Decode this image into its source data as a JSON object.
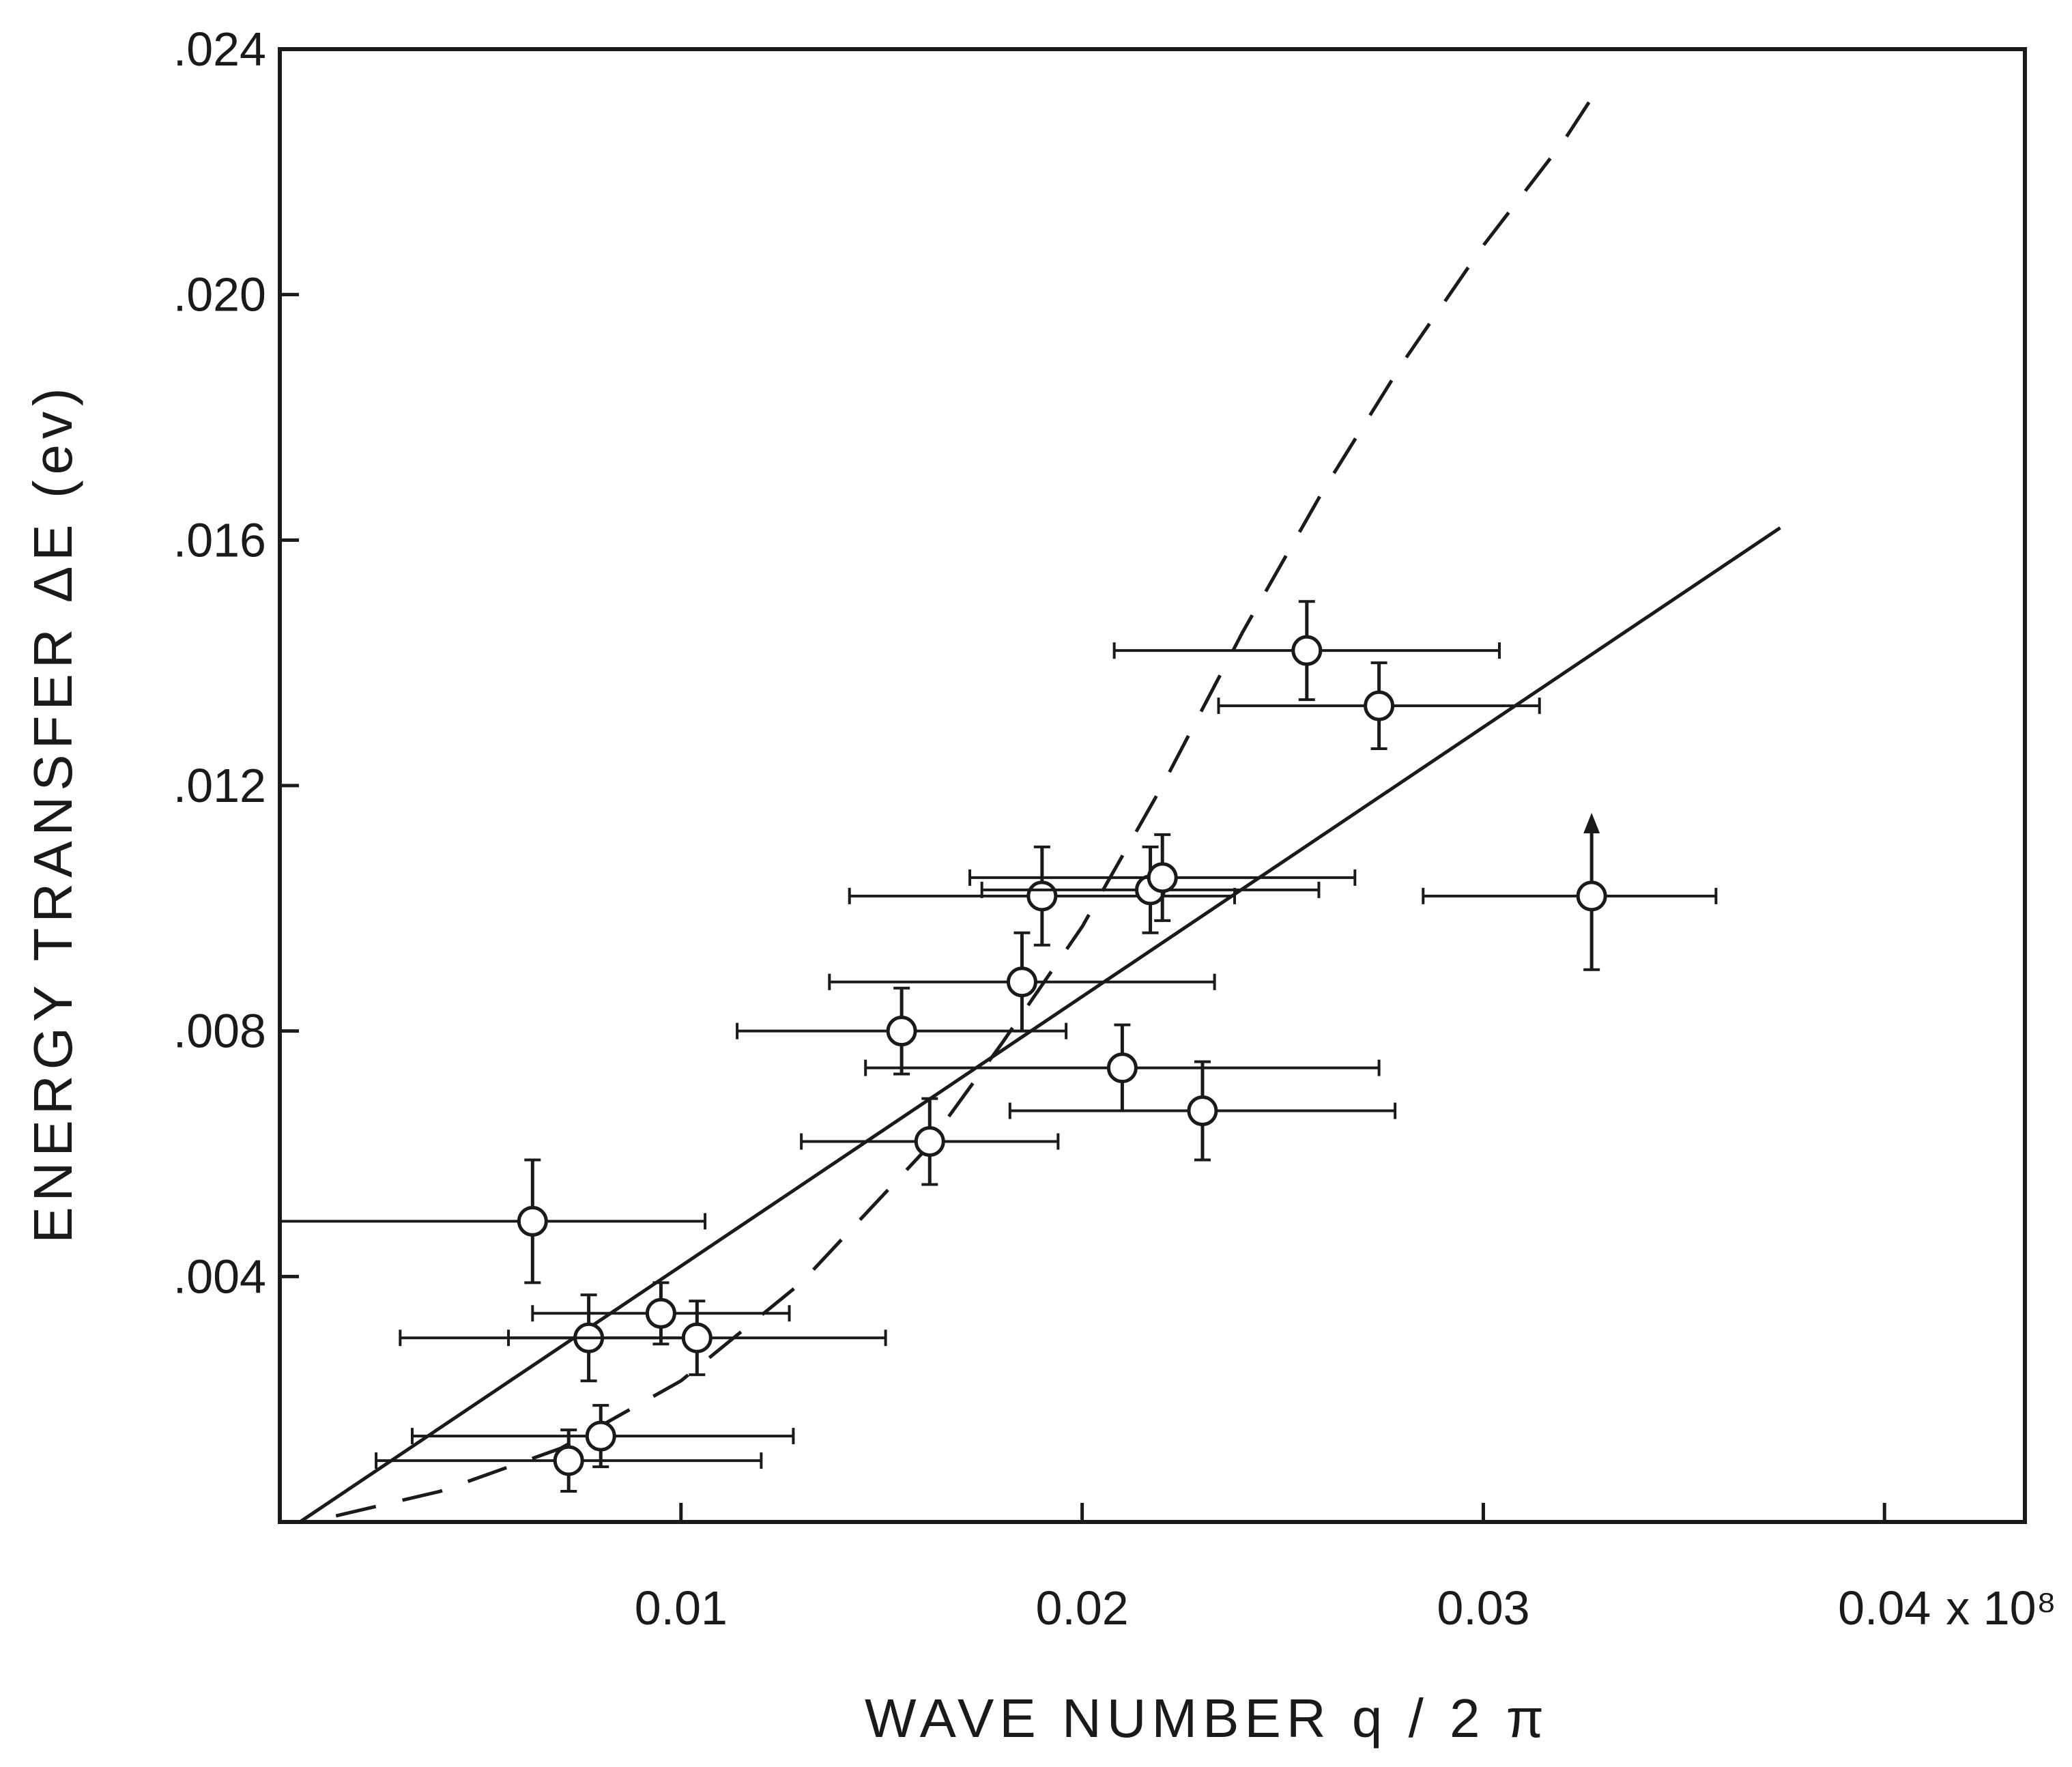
{
  "chart_data": {
    "type": "scatter",
    "title": "",
    "xlabel": "WAVE NUMBER  q / 2 π",
    "ylabel": "ENERGY TRANSFER  ΔE  (ev)",
    "x_multiplier_label": "x 10⁸",
    "xlim": [
      0,
      0.0435
    ],
    "ylim": [
      0,
      0.024
    ],
    "x_ticks": [
      {
        "value": 0.01,
        "label": "0.01"
      },
      {
        "value": 0.02,
        "label": "0.02"
      },
      {
        "value": 0.03,
        "label": "0.03"
      },
      {
        "value": 0.04,
        "label": "0.04"
      }
    ],
    "y_ticks": [
      {
        "value": 0.004,
        "label": ".004"
      },
      {
        "value": 0.008,
        "label": ".008"
      },
      {
        "value": 0.012,
        "label": ".012"
      },
      {
        "value": 0.016,
        "label": ".016"
      },
      {
        "value": 0.02,
        "label": ".020"
      },
      {
        "value": 0.024,
        "label": ".024"
      }
    ],
    "grid": false,
    "colors": {
      "ink": "#1a1a1a",
      "background": "#ffffff"
    },
    "series": [
      {
        "marker": "open-circle",
        "points": [
          {
            "x": 0.0063,
            "y": 0.0049,
            "xerr": [
              0.0063,
              0.0043
            ],
            "yerr": [
              0.001,
              0.001
            ]
          },
          {
            "x": 0.0077,
            "y": 0.003,
            "xerr": [
              0.0047,
              0.0025
            ],
            "yerr": [
              0.0007,
              0.0007
            ]
          },
          {
            "x": 0.0095,
            "y": 0.0034,
            "xerr": [
              0.0032,
              0.0032
            ],
            "yerr": [
              0.0005,
              0.0005
            ]
          },
          {
            "x": 0.0104,
            "y": 0.003,
            "xerr": [
              0.0047,
              0.0047
            ],
            "yerr": [
              0.0006,
              0.0006
            ]
          },
          {
            "x": 0.008,
            "y": 0.0014,
            "xerr": [
              0.0047,
              0.0048
            ],
            "yerr": [
              0.0005,
              0.0005
            ]
          },
          {
            "x": 0.0072,
            "y": 0.001,
            "xerr": [
              0.0048,
              0.0048
            ],
            "yerr": [
              0.0005,
              0.0005
            ]
          },
          {
            "x": 0.0155,
            "y": 0.008,
            "xerr": [
              0.0041,
              0.0041
            ],
            "yerr": [
              0.0007,
              0.0007
            ]
          },
          {
            "x": 0.0185,
            "y": 0.0088,
            "xerr": [
              0.0048,
              0.0048
            ],
            "yerr": [
              0.0008,
              0.0008
            ]
          },
          {
            "x": 0.0162,
            "y": 0.0062,
            "xerr": [
              0.0032,
              0.0032
            ],
            "yerr": [
              0.0007,
              0.0007
            ]
          },
          {
            "x": 0.019,
            "y": 0.0102,
            "xerr": [
              0.0048,
              0.0048
            ],
            "yerr": [
              0.0008,
              0.0008
            ]
          },
          {
            "x": 0.0217,
            "y": 0.0103,
            "xerr": [
              0.0042,
              0.0042
            ],
            "yerr": [
              0.0007,
              0.0007
            ]
          },
          {
            "x": 0.022,
            "y": 0.0105,
            "xerr": [
              0.0048,
              0.0048
            ],
            "yerr": [
              0.0007,
              0.0007
            ]
          },
          {
            "x": 0.021,
            "y": 0.0074,
            "xerr": [
              0.0064,
              0.0064
            ],
            "yerr": [
              0.0007,
              0.0007
            ]
          },
          {
            "x": 0.023,
            "y": 0.0067,
            "xerr": [
              0.0048,
              0.0048
            ],
            "yerr": [
              0.0008,
              0.0008
            ]
          },
          {
            "x": 0.0256,
            "y": 0.0142,
            "xerr": [
              0.0048,
              0.0048
            ],
            "yerr": [
              0.0008,
              0.0008
            ]
          },
          {
            "x": 0.0274,
            "y": 0.0133,
            "xerr": [
              0.004,
              0.004
            ],
            "yerr": [
              0.0007,
              0.0007
            ]
          },
          {
            "x": 0.0327,
            "y": 0.0102,
            "xerr": [
              0.0042,
              0.0031
            ],
            "yerr": [
              0.0012,
              0.0012
            ],
            "lower_limit_arrow": true
          }
        ]
      },
      {
        "line": "solid",
        "points": [
          [
            0.0005,
            0.0
          ],
          [
            0.0374,
            0.0162
          ]
        ]
      },
      {
        "line": "dashed",
        "points": [
          [
            0.0014,
            0.0001
          ],
          [
            0.004,
            0.0005
          ],
          [
            0.007,
            0.0012
          ],
          [
            0.01,
            0.0023
          ],
          [
            0.013,
            0.0039
          ],
          [
            0.016,
            0.006
          ],
          [
            0.018,
            0.0078
          ],
          [
            0.02,
            0.0097
          ],
          [
            0.022,
            0.012
          ],
          [
            0.024,
            0.0145
          ],
          [
            0.026,
            0.0168
          ],
          [
            0.028,
            0.0189
          ],
          [
            0.03,
            0.0208
          ],
          [
            0.032,
            0.0225
          ],
          [
            0.0327,
            0.0232
          ]
        ]
      }
    ]
  }
}
